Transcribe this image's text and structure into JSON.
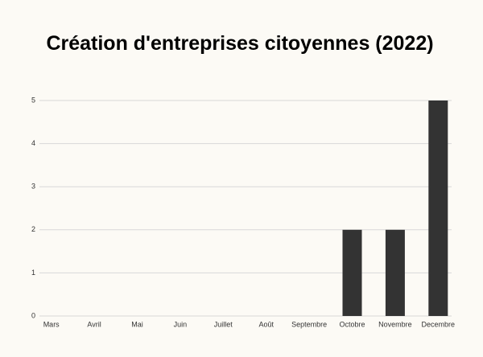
{
  "chart_data": {
    "type": "bar",
    "title": "Création d'entreprises citoyennes (2022)",
    "categories": [
      "Mars",
      "Avril",
      "Mai",
      "Juin",
      "Juillet",
      "Août",
      "Septembre",
      "Octobre",
      "Novembre",
      "Decembre"
    ],
    "values": [
      0,
      0,
      0,
      0,
      0,
      0,
      0,
      2,
      2,
      5
    ],
    "color": "#333333",
    "ylim": [
      0,
      5
    ],
    "yticks": [
      0,
      1,
      2,
      3,
      4,
      5
    ],
    "grid": true
  }
}
